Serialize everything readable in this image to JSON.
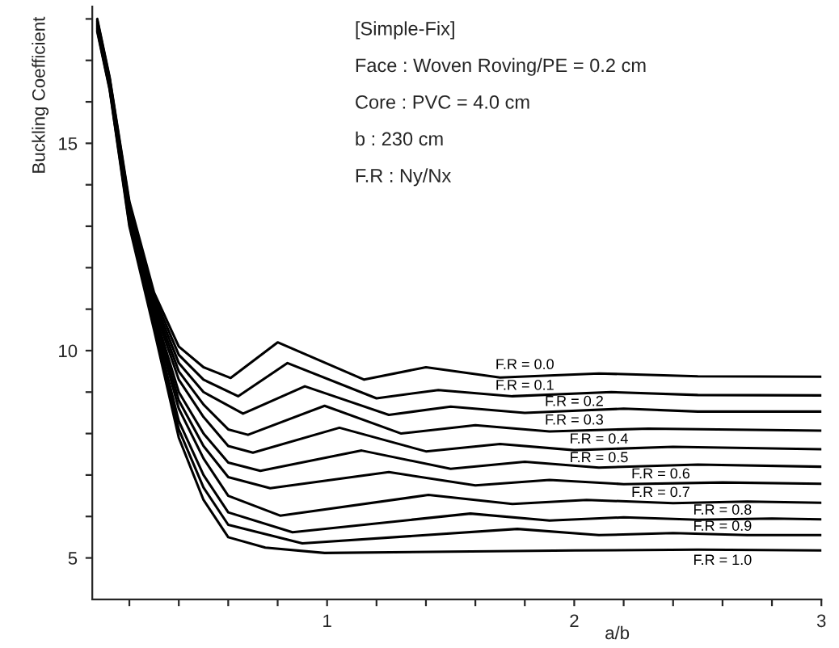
{
  "chart_data": {
    "type": "line",
    "xlabel": "a/b",
    "ylabel": "Buckling Coefficient",
    "annotations": [
      "[Simple-Fix]",
      "Face : Woven Roving/PE = 0.2 cm",
      "Core : PVC = 4.0 cm",
      "b : 230 cm",
      "F.R : Ny/Nx"
    ],
    "xlim": [
      0.05,
      3
    ],
    "ylim": [
      4,
      18.3
    ],
    "xticks": [
      {
        "value": 0.2,
        "label": null
      },
      {
        "value": 0.4,
        "label": null
      },
      {
        "value": 0.6,
        "label": null
      },
      {
        "value": 0.8,
        "label": null
      },
      1,
      {
        "value": 1.2,
        "label": null
      },
      {
        "value": 1.4,
        "label": null
      },
      {
        "value": 1.6,
        "label": null
      },
      {
        "value": 1.8,
        "label": null
      },
      2,
      {
        "value": 2.2,
        "label": null
      },
      {
        "value": 2.4,
        "label": null
      },
      {
        "value": 2.6,
        "label": null
      },
      {
        "value": 2.8,
        "label": null
      },
      3
    ],
    "yticks": [
      5,
      {
        "value": 6,
        "label": null
      },
      {
        "value": 7,
        "label": null
      },
      {
        "value": 8,
        "label": null
      },
      {
        "value": 9,
        "label": null
      },
      10,
      {
        "value": 11,
        "label": null
      },
      {
        "value": 12,
        "label": null
      },
      {
        "value": 13,
        "label": null
      },
      {
        "value": 14,
        "label": null
      },
      15,
      {
        "value": 16,
        "label": null
      },
      {
        "value": 17,
        "label": null
      },
      {
        "value": 18,
        "label": null
      }
    ],
    "grid": false,
    "legend": false,
    "marker": "none",
    "line_style": "solid",
    "series": [
      {
        "name": "F.R = 0.0",
        "color": "#000000",
        "x": [
          0.07,
          0.12,
          0.2,
          0.3,
          0.4,
          0.5,
          0.61,
          0.8,
          1.15,
          1.4,
          1.7,
          2.1,
          2.5,
          3.0
        ],
        "values": [
          18.0,
          16.6,
          13.6,
          11.4,
          10.1,
          9.6,
          9.34,
          10.2,
          9.3,
          9.6,
          9.35,
          9.45,
          9.38,
          9.37
        ]
      },
      {
        "name": "F.R = 0.1",
        "color": "#000000",
        "x": [
          0.07,
          0.12,
          0.2,
          0.3,
          0.4,
          0.5,
          0.64,
          0.84,
          1.2,
          1.45,
          1.75,
          2.15,
          2.5,
          3.0
        ],
        "values": [
          17.97,
          16.57,
          13.54,
          11.31,
          9.9,
          9.3,
          8.9,
          9.7,
          8.85,
          9.05,
          8.9,
          9.0,
          8.93,
          8.92
        ]
      },
      {
        "name": "F.R = 0.2",
        "color": "#000000",
        "x": [
          0.07,
          0.12,
          0.2,
          0.3,
          0.4,
          0.5,
          0.66,
          0.91,
          1.25,
          1.5,
          1.8,
          2.2,
          2.5,
          3.0
        ],
        "values": [
          17.94,
          16.54,
          13.48,
          11.22,
          9.7,
          9.0,
          8.48,
          9.14,
          8.45,
          8.65,
          8.5,
          8.6,
          8.53,
          8.53
        ]
      },
      {
        "name": "F.R = 0.3",
        "color": "#000000",
        "x": [
          0.07,
          0.12,
          0.2,
          0.3,
          0.4,
          0.5,
          0.6,
          0.68,
          0.99,
          1.3,
          1.6,
          1.9,
          2.3,
          3.0
        ],
        "values": [
          17.91,
          16.51,
          13.42,
          11.13,
          9.5,
          8.7,
          8.1,
          7.97,
          8.67,
          8.0,
          8.2,
          8.05,
          8.12,
          8.07
        ]
      },
      {
        "name": "F.R = 0.4",
        "color": "#000000",
        "x": [
          0.07,
          0.12,
          0.2,
          0.3,
          0.4,
          0.5,
          0.6,
          0.7,
          1.05,
          1.4,
          1.7,
          2.0,
          2.4,
          3.0
        ],
        "values": [
          17.88,
          16.48,
          13.36,
          11.04,
          9.3,
          8.4,
          7.7,
          7.54,
          8.14,
          7.57,
          7.75,
          7.6,
          7.68,
          7.62
        ]
      },
      {
        "name": "F.R = 0.5",
        "color": "#000000",
        "x": [
          0.07,
          0.12,
          0.2,
          0.3,
          0.4,
          0.5,
          0.6,
          0.73,
          1.14,
          1.5,
          1.8,
          2.1,
          2.5,
          3.0
        ],
        "values": [
          17.85,
          16.45,
          13.3,
          10.95,
          9.0,
          8.0,
          7.3,
          7.1,
          7.59,
          7.15,
          7.32,
          7.18,
          7.25,
          7.2
        ]
      },
      {
        "name": "F.R = 0.6",
        "color": "#000000",
        "x": [
          0.07,
          0.12,
          0.2,
          0.3,
          0.4,
          0.5,
          0.6,
          0.77,
          1.25,
          1.6,
          1.9,
          2.2,
          2.6,
          3.0
        ],
        "values": [
          17.82,
          16.42,
          13.24,
          10.86,
          8.8,
          7.7,
          6.95,
          6.68,
          7.07,
          6.75,
          6.88,
          6.78,
          6.82,
          6.79
        ]
      },
      {
        "name": "F.R = 0.7",
        "color": "#000000",
        "x": [
          0.07,
          0.12,
          0.2,
          0.3,
          0.4,
          0.5,
          0.6,
          0.81,
          1.41,
          1.75,
          2.05,
          2.4,
          2.7,
          3.0
        ],
        "values": [
          17.79,
          16.39,
          13.18,
          10.77,
          8.6,
          7.4,
          6.5,
          6.02,
          6.52,
          6.3,
          6.4,
          6.32,
          6.36,
          6.33
        ]
      },
      {
        "name": "F.R = 0.8",
        "color": "#000000",
        "x": [
          0.07,
          0.12,
          0.2,
          0.3,
          0.4,
          0.5,
          0.6,
          0.86,
          1.58,
          1.9,
          2.2,
          2.5,
          2.8,
          3.0
        ],
        "values": [
          17.76,
          16.36,
          13.12,
          10.68,
          8.3,
          7.0,
          6.1,
          5.62,
          6.07,
          5.9,
          5.98,
          5.92,
          5.95,
          5.93
        ]
      },
      {
        "name": "F.R = 0.9",
        "color": "#000000",
        "x": [
          0.07,
          0.12,
          0.2,
          0.3,
          0.4,
          0.5,
          0.6,
          0.9,
          1.77,
          2.1,
          2.4,
          2.7,
          3.0
        ],
        "values": [
          17.73,
          16.33,
          13.06,
          10.59,
          8.1,
          6.7,
          5.8,
          5.35,
          5.7,
          5.55,
          5.6,
          5.55,
          5.55
        ]
      },
      {
        "name": "F.R = 1.0",
        "color": "#000000",
        "x": [
          0.07,
          0.12,
          0.2,
          0.3,
          0.4,
          0.5,
          0.6,
          0.75,
          0.99,
          1.5,
          2.0,
          2.5,
          3.0
        ],
        "values": [
          17.7,
          16.3,
          13.0,
          10.5,
          7.9,
          6.4,
          5.5,
          5.25,
          5.12,
          5.15,
          5.18,
          5.2,
          5.18
        ]
      }
    ]
  }
}
